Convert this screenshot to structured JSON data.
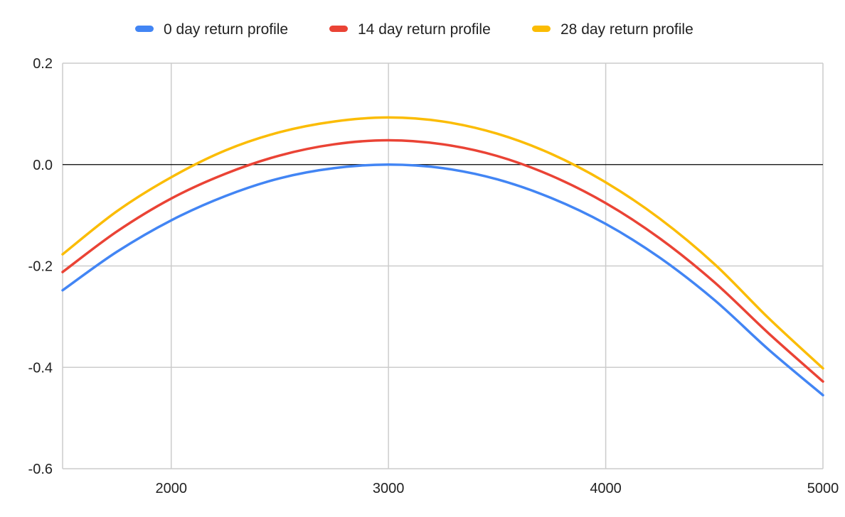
{
  "chart_data": {
    "type": "line",
    "title": "",
    "xlabel": "",
    "ylabel": "",
    "xlim": [
      1500,
      5000
    ],
    "ylim": [
      -0.6,
      0.2
    ],
    "x_ticks": [
      2000,
      3000,
      4000,
      5000
    ],
    "x_tick_labels": [
      "2000",
      "3000",
      "4000",
      "5000"
    ],
    "y_ticks": [
      0.2,
      0.0,
      -0.2,
      -0.4,
      -0.6
    ],
    "y_tick_labels": [
      "0.2",
      "0.0",
      "-0.2",
      "-0.4",
      "-0.6"
    ],
    "grid": true,
    "legend_position": "top",
    "x": [
      1500,
      1750,
      2000,
      2250,
      2500,
      2750,
      3000,
      3250,
      3500,
      3750,
      4000,
      4250,
      4500,
      4750,
      5000
    ],
    "series": [
      {
        "name": "0 day return profile",
        "color": "#4285f4",
        "values": [
          -0.248,
          -0.172,
          -0.11,
          -0.062,
          -0.027,
          -0.007,
          0.0,
          -0.007,
          -0.029,
          -0.066,
          -0.117,
          -0.184,
          -0.267,
          -0.365,
          -0.455
        ]
      },
      {
        "name": "14 day return profile",
        "color": "#ea4335",
        "values": [
          -0.212,
          -0.132,
          -0.067,
          -0.018,
          0.018,
          0.04,
          0.048,
          0.04,
          0.017,
          -0.022,
          -0.076,
          -0.146,
          -0.232,
          -0.333,
          -0.428
        ]
      },
      {
        "name": "28 day return profile",
        "color": "#fbbc04",
        "values": [
          -0.177,
          -0.092,
          -0.025,
          0.028,
          0.064,
          0.085,
          0.093,
          0.085,
          0.061,
          0.021,
          -0.035,
          -0.107,
          -0.196,
          -0.303,
          -0.402
        ]
      }
    ]
  }
}
